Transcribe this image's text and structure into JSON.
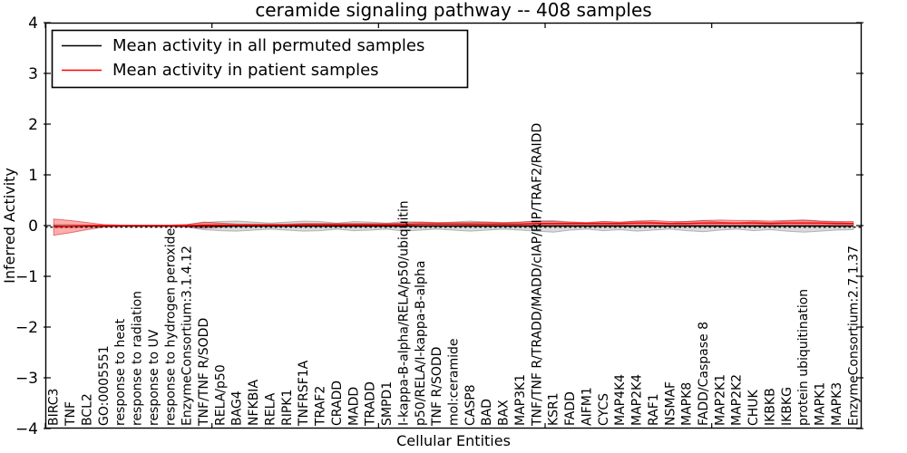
{
  "title": "ceramide signaling pathway -- 408 samples",
  "axes": {
    "ylabel": "Inferred Activity",
    "xlabel": "Cellular Entities",
    "ytick_labels": [
      "4",
      "3",
      "2",
      "1",
      "0",
      "−1",
      "−2",
      "−3",
      "−4"
    ]
  },
  "legend": {
    "items": [
      {
        "label": "Mean activity in all permuted samples",
        "color": "#000000"
      },
      {
        "label": "Mean activity in patient samples",
        "color": "#ff0000"
      }
    ]
  },
  "chart_data": {
    "type": "line",
    "title": "ceramide signaling pathway -- 408 samples",
    "xlabel": "Cellular Entities",
    "ylabel": "Inferred Activity",
    "ylim": [
      -4,
      4
    ],
    "yticks": [
      4,
      3,
      2,
      1,
      0,
      -1,
      -2,
      -3,
      -4
    ],
    "xticks": [
      0,
      10,
      20,
      30,
      40
    ],
    "grid": false,
    "legend_position": "upper left",
    "band_style": "mean with shaded upper/lower envelope per series",
    "zero_line": {
      "style": "dashed",
      "color": "#000000",
      "y": -0.03
    },
    "categories": [
      "BIRC3",
      "TNF",
      "BCL2",
      "GO:0005551",
      "response to heat",
      "response to radiation",
      "response to UV",
      "response to hydrogen peroxide",
      "EnzymeConsortium:3.1.4.12",
      "TNF/TNF R/SODD",
      "RELA/p50",
      "BAG4",
      "NFKBIA",
      "RELA",
      "RIPK1",
      "TNFRSF1A",
      "TRAF2",
      "CRADD",
      "MADD",
      "TRADD",
      "SMPD1",
      "I-kappa-B-alpha/RELA/p50/ubiquitin",
      "p50/RELA/I-kappa-B-alpha",
      "TNF R/SODD",
      "mol:ceramide",
      "CASP8",
      "BAD",
      "BAX",
      "MAP3K1",
      "TNF/TNF R/TRADD/MADD/cIAP/RIP/TRAF2/RAIDD",
      "KSR1",
      "FADD",
      "AIFM1",
      "CYCS",
      "MAP4K4",
      "MAP2K4",
      "RAF1",
      "NSMAF",
      "MAPK8",
      "FADD/Caspase 8",
      "MAP2K1",
      "MAP2K2",
      "CHUK",
      "IKBKB",
      "IKBKG",
      "protein ubiquitination",
      "MAPK1",
      "MAPK3",
      "EnzymeConsortium:2.7.1.37"
    ],
    "series": [
      {
        "name": "Mean activity in all permuted samples",
        "line_color": "#000000",
        "band_fill": "rgba(130,130,130,0.30)",
        "band_edge": "rgba(110,110,110,0.45)",
        "mean": [
          -0.01,
          -0.01,
          -0.01,
          -0.01,
          -0.01,
          -0.01,
          -0.01,
          -0.01,
          -0.01,
          -0.01,
          -0.01,
          -0.01,
          -0.01,
          -0.01,
          -0.01,
          -0.01,
          -0.01,
          -0.01,
          -0.01,
          -0.01,
          -0.01,
          -0.01,
          -0.01,
          -0.01,
          -0.01,
          -0.01,
          -0.01,
          -0.01,
          -0.01,
          -0.01,
          -0.01,
          -0.01,
          -0.01,
          -0.01,
          -0.01,
          -0.01,
          -0.01,
          -0.01,
          -0.01,
          -0.01,
          -0.01,
          -0.01,
          -0.01,
          -0.01,
          -0.01,
          -0.01,
          -0.01,
          -0.01,
          -0.01
        ],
        "upper": [
          0.02,
          0.02,
          0.01,
          0.01,
          0.01,
          0.01,
          0.01,
          0.01,
          0.02,
          0.06,
          0.08,
          0.09,
          0.07,
          0.05,
          0.07,
          0.09,
          0.08,
          0.05,
          0.08,
          0.07,
          0.05,
          0.08,
          0.07,
          0.05,
          0.07,
          0.09,
          0.07,
          0.05,
          0.07,
          0.09,
          0.1,
          0.07,
          0.05,
          0.08,
          0.06,
          0.09,
          0.07,
          0.05,
          0.08,
          0.1,
          0.07,
          0.05,
          0.08,
          0.06,
          0.09,
          0.11,
          0.09,
          0.07,
          0.05
        ],
        "lower": [
          -0.04,
          -0.04,
          -0.03,
          -0.02,
          -0.02,
          -0.02,
          -0.02,
          -0.02,
          -0.03,
          -0.08,
          -0.1,
          -0.11,
          -0.09,
          -0.07,
          -0.09,
          -0.11,
          -0.1,
          -0.07,
          -0.1,
          -0.09,
          -0.07,
          -0.11,
          -0.09,
          -0.07,
          -0.09,
          -0.11,
          -0.09,
          -0.07,
          -0.09,
          -0.11,
          -0.13,
          -0.09,
          -0.07,
          -0.1,
          -0.08,
          -0.11,
          -0.09,
          -0.07,
          -0.1,
          -0.12,
          -0.09,
          -0.07,
          -0.1,
          -0.08,
          -0.11,
          -0.13,
          -0.11,
          -0.09,
          -0.08
        ]
      },
      {
        "name": "Mean activity in patient samples",
        "line_color": "#ff0000",
        "band_fill": "rgba(255,0,0,0.32)",
        "band_edge": "rgba(205,30,30,0.55)",
        "mean": [
          -0.02,
          -0.01,
          0.0,
          0.0,
          0.0,
          0.0,
          0.0,
          0.0,
          0.0,
          0.01,
          0.01,
          0.01,
          0.01,
          0.01,
          0.01,
          0.02,
          0.02,
          0.02,
          0.02,
          0.02,
          0.02,
          0.02,
          0.03,
          0.03,
          0.03,
          0.03,
          0.03,
          0.03,
          0.03,
          0.04,
          0.04,
          0.04,
          0.04,
          0.04,
          0.04,
          0.05,
          0.05,
          0.04,
          0.04,
          0.05,
          0.05,
          0.05,
          0.05,
          0.04,
          0.05,
          0.05,
          0.05,
          0.04,
          0.04
        ],
        "upper": [
          0.13,
          0.1,
          0.06,
          0.02,
          0.01,
          0.01,
          0.01,
          0.01,
          0.02,
          0.07,
          0.05,
          0.03,
          0.03,
          0.03,
          0.03,
          0.04,
          0.04,
          0.04,
          0.04,
          0.04,
          0.04,
          0.05,
          0.07,
          0.06,
          0.06,
          0.06,
          0.07,
          0.06,
          0.07,
          0.09,
          0.08,
          0.07,
          0.06,
          0.08,
          0.07,
          0.09,
          0.1,
          0.08,
          0.08,
          0.1,
          0.11,
          0.1,
          0.1,
          0.09,
          0.1,
          0.11,
          0.09,
          0.08,
          0.08
        ],
        "lower": [
          -0.19,
          -0.14,
          -0.08,
          -0.03,
          -0.01,
          -0.01,
          -0.01,
          -0.01,
          -0.02,
          -0.05,
          -0.03,
          -0.01,
          -0.01,
          -0.01,
          -0.01,
          -0.01,
          -0.01,
          0.0,
          0.0,
          0.0,
          0.0,
          0.0,
          0.0,
          0.0,
          0.0,
          0.01,
          0.01,
          0.01,
          0.01,
          0.01,
          0.01,
          0.01,
          0.01,
          0.01,
          0.01,
          0.01,
          0.01,
          0.01,
          0.01,
          0.01,
          0.01,
          0.01,
          0.01,
          0.01,
          0.01,
          0.01,
          0.01,
          0.0,
          0.0
        ]
      }
    ]
  }
}
